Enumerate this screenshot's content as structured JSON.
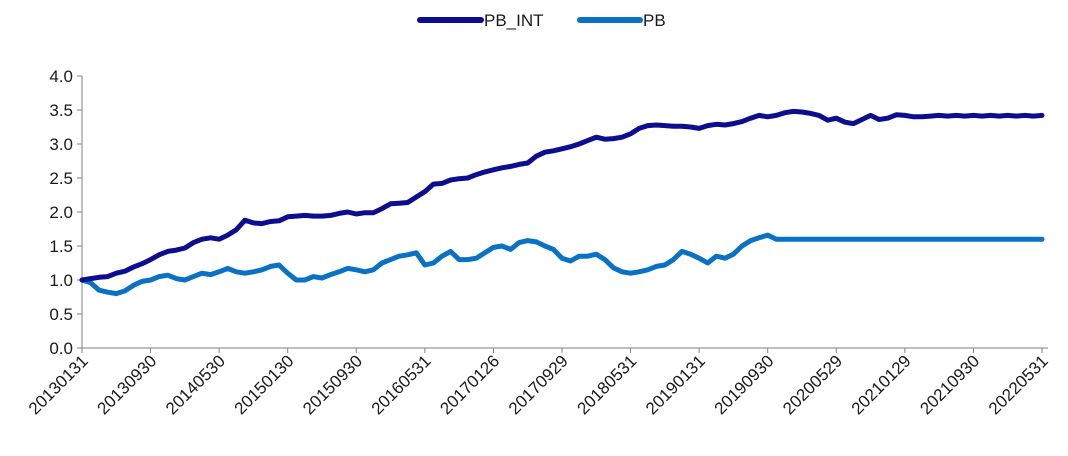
{
  "chart_data": {
    "type": "line",
    "title": "",
    "xlabel": "",
    "ylabel": "",
    "ylim": [
      0,
      4
    ],
    "y_ticks": [
      "0.0",
      "0.5",
      "1.0",
      "1.5",
      "2.0",
      "2.5",
      "3.0",
      "3.5",
      "4.0"
    ],
    "x_tick_labels": [
      "20130131",
      "20130930",
      "20140530",
      "20150130",
      "20150930",
      "20160531",
      "20170126",
      "20170929",
      "20180531",
      "20190131",
      "20190930",
      "20200529",
      "20210129",
      "20210930",
      "20220531"
    ],
    "grid": false,
    "legend_position": "top",
    "colors": {
      "PB_INT": "#0d0d8f",
      "PB": "#0a72c4"
    },
    "x": [
      "20130131",
      "20130228",
      "20130329",
      "20130426",
      "20130531",
      "20130628",
      "20130731",
      "20130830",
      "20130930",
      "20131031",
      "20131129",
      "20131231",
      "20140130",
      "20140228",
      "20140331",
      "20140430",
      "20140530",
      "20140630",
      "20140731",
      "20140829",
      "20140930",
      "20141031",
      "20141128",
      "20141231",
      "20150130",
      "20150227",
      "20150331",
      "20150430",
      "20150529",
      "20150630",
      "20150731",
      "20150831",
      "20150930",
      "20151030",
      "20151130",
      "20151231",
      "20160129",
      "20160229",
      "20160331",
      "20160429",
      "20160531",
      "20160630",
      "20160729",
      "20160831",
      "20160930",
      "20161031",
      "20161130",
      "20161230",
      "20170126",
      "20170228",
      "20170331",
      "20170428",
      "20170531",
      "20170630",
      "20170731",
      "20170831",
      "20170929",
      "20171031",
      "20171130",
      "20171229",
      "20180131",
      "20180228",
      "20180330",
      "20180427",
      "20180531",
      "20180629",
      "20180731",
      "20180831",
      "20180928",
      "20181031",
      "20181130",
      "20181228",
      "20190131",
      "20190228",
      "20190329",
      "20190430",
      "20190531",
      "20190628",
      "20190731",
      "20190830",
      "20190930",
      "20191031",
      "20191129",
      "20191231",
      "20200123",
      "20200228",
      "20200331",
      "20200430",
      "20200529",
      "20200630",
      "20200731",
      "20200831",
      "20200930",
      "20201030",
      "20201130",
      "20201231",
      "20210129",
      "20210226",
      "20210331",
      "20210430",
      "20210531",
      "20210630",
      "20210730",
      "20210831",
      "20210930",
      "20211029",
      "20211130",
      "20211231",
      "20220128",
      "20220228",
      "20220331",
      "20220429",
      "20220531"
    ],
    "series": [
      {
        "name": "PB_INT",
        "values": [
          1.0,
          1.02,
          1.04,
          1.05,
          1.1,
          1.13,
          1.19,
          1.24,
          1.3,
          1.37,
          1.42,
          1.44,
          1.47,
          1.55,
          1.6,
          1.62,
          1.6,
          1.66,
          1.74,
          1.88,
          1.84,
          1.83,
          1.86,
          1.87,
          1.93,
          1.94,
          1.95,
          1.94,
          1.94,
          1.95,
          1.98,
          2.0,
          1.97,
          1.99,
          1.99,
          2.05,
          2.12,
          2.13,
          2.14,
          2.22,
          2.3,
          2.41,
          2.42,
          2.47,
          2.49,
          2.5,
          2.55,
          2.59,
          2.62,
          2.65,
          2.67,
          2.7,
          2.72,
          2.82,
          2.88,
          2.9,
          2.93,
          2.96,
          3.0,
          3.05,
          3.1,
          3.07,
          3.08,
          3.1,
          3.15,
          3.23,
          3.27,
          3.28,
          3.27,
          3.26,
          3.26,
          3.25,
          3.23,
          3.27,
          3.29,
          3.28,
          3.3,
          3.33,
          3.38,
          3.42,
          3.4,
          3.42,
          3.46,
          3.48,
          3.47,
          3.45,
          3.42,
          3.35,
          3.38,
          3.32,
          3.3,
          3.36,
          3.42,
          3.36,
          3.38,
          3.43,
          3.42,
          3.4,
          3.4,
          3.41,
          3.42,
          3.41,
          3.42,
          3.41,
          3.42,
          3.41,
          3.42,
          3.41,
          3.42,
          3.41,
          3.42,
          3.41,
          3.42
        ]
      },
      {
        "name": "PB",
        "values": [
          1.0,
          0.96,
          0.85,
          0.82,
          0.8,
          0.84,
          0.92,
          0.98,
          1.0,
          1.05,
          1.07,
          1.02,
          1.0,
          1.05,
          1.1,
          1.08,
          1.12,
          1.17,
          1.12,
          1.1,
          1.12,
          1.15,
          1.2,
          1.22,
          1.1,
          1.0,
          1.0,
          1.05,
          1.03,
          1.08,
          1.12,
          1.17,
          1.15,
          1.12,
          1.15,
          1.25,
          1.3,
          1.35,
          1.37,
          1.4,
          1.22,
          1.25,
          1.35,
          1.42,
          1.3,
          1.3,
          1.32,
          1.4,
          1.48,
          1.5,
          1.45,
          1.55,
          1.58,
          1.56,
          1.5,
          1.45,
          1.32,
          1.28,
          1.35,
          1.35,
          1.38,
          1.3,
          1.18,
          1.12,
          1.1,
          1.12,
          1.15,
          1.2,
          1.22,
          1.3,
          1.42,
          1.38,
          1.32,
          1.25,
          1.35,
          1.32,
          1.38,
          1.5,
          1.58,
          1.62,
          1.66,
          1.6,
          1.6,
          1.6,
          1.6,
          1.6,
          1.6,
          1.6,
          1.6,
          1.6,
          1.6,
          1.6,
          1.6,
          1.6,
          1.6,
          1.6,
          1.6,
          1.6,
          1.6,
          1.6,
          1.6,
          1.6,
          1.6,
          1.6,
          1.6,
          1.6,
          1.6,
          1.6,
          1.6,
          1.6,
          1.6,
          1.6,
          1.6
        ]
      }
    ]
  }
}
